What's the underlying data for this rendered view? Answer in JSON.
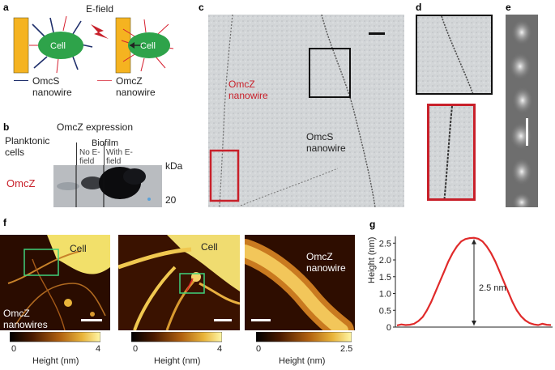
{
  "panels": {
    "a": {
      "label": "a",
      "efield_label": "E-field",
      "cell_label": "Cell",
      "legend_omcs": "OmcS\nnanowire",
      "legend_omcz": "OmcZ\nnanowire",
      "colors": {
        "cell": "#2ea34a",
        "electrode": "#f5b320",
        "omcs": "#1f2f6b",
        "omcz": "#d62030",
        "bolt": "#c8202a"
      }
    },
    "b": {
      "label": "b",
      "title": "OmcZ expression",
      "col_planktonic": "Planktonic cells",
      "col_biofilm": "Biofilm",
      "col_no_efield": "No E-field",
      "col_with_efield": "With E-field",
      "band_label": "OmcZ",
      "unit": "kDa",
      "marker": "20"
    },
    "c": {
      "label": "c",
      "omcz_label": "OmcZ\nnanowire",
      "omcs_label": "OmcS\nnanowire"
    },
    "d": {
      "label": "d"
    },
    "e": {
      "label": "e"
    },
    "f": {
      "label": "f",
      "cell_label_1": "Cell",
      "cell_label_2": "Cell",
      "omcz_nanowires": "OmcZ\nnanowires",
      "omcz_nanowire": "OmcZ\nnanowire",
      "cbar1": {
        "min": "0",
        "max": "4",
        "title": "Height (nm)"
      },
      "cbar2": {
        "min": "0",
        "max": "4",
        "title": "Height (nm)"
      },
      "cbar3": {
        "min": "0",
        "max": "2.5",
        "title": "Height (nm)"
      }
    },
    "g": {
      "label": "g",
      "annotation": "2.5 nm"
    }
  },
  "chart_data": {
    "type": "line",
    "title": "",
    "xlabel": "",
    "ylabel": "Height (nm)",
    "ylim": [
      0,
      2.7
    ],
    "yticks": [
      "0",
      "0.5",
      "1.0",
      "1.5",
      "2.0",
      "2.5"
    ],
    "series": [
      {
        "color": "#e02a2a",
        "values": [
          0.05,
          0.08,
          0.06,
          0.07,
          0.1,
          0.18,
          0.3,
          0.5,
          0.75,
          1.05,
          1.35,
          1.65,
          1.95,
          2.2,
          2.4,
          2.55,
          2.62,
          2.65,
          2.66,
          2.63,
          2.55,
          2.4,
          2.2,
          1.95,
          1.65,
          1.35,
          1.05,
          0.75,
          0.5,
          0.32,
          0.2,
          0.12,
          0.08,
          0.06,
          0.1,
          0.07,
          0.06
        ]
      }
    ],
    "grid": false
  }
}
